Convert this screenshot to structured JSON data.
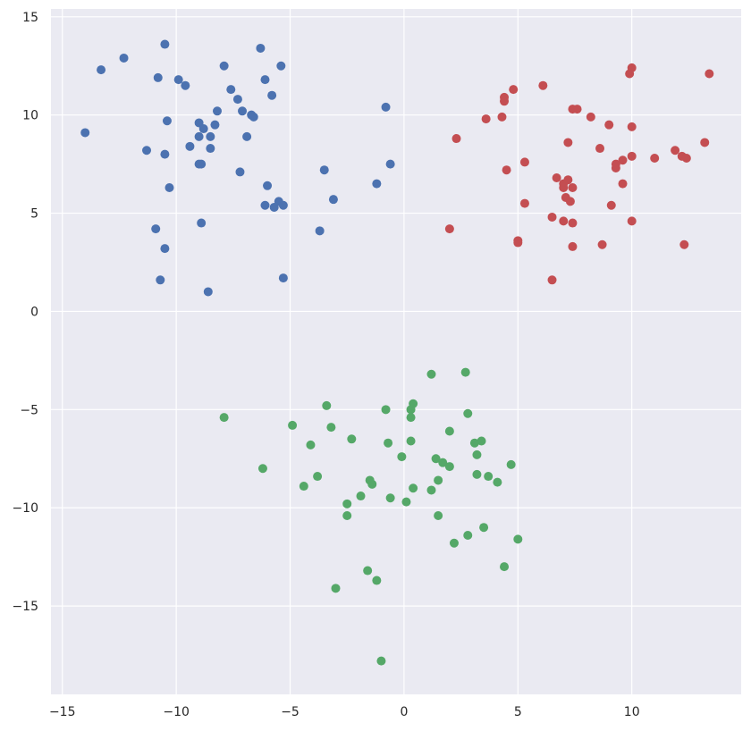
{
  "chart_data": {
    "type": "scatter",
    "title": "",
    "xlabel": "",
    "ylabel": "",
    "xlim": [
      -15.5,
      14.8
    ],
    "ylim": [
      -19.5,
      15.4
    ],
    "xticks": [
      -15,
      -10,
      -5,
      0,
      5,
      10
    ],
    "yticks": [
      -15,
      -10,
      -5,
      0,
      5,
      10,
      15
    ],
    "grid": true,
    "background": "#eaeaf2",
    "gridColor": "#ffffff",
    "series": [
      {
        "color": "#4c72b0",
        "points": [
          [
            -14.0,
            9.1
          ],
          [
            -13.3,
            12.3
          ],
          [
            -12.3,
            12.9
          ],
          [
            -11.3,
            8.2
          ],
          [
            -10.9,
            4.2
          ],
          [
            -10.8,
            11.9
          ],
          [
            -10.7,
            1.6
          ],
          [
            -10.5,
            13.6
          ],
          [
            -10.5,
            8.0
          ],
          [
            -10.5,
            3.2
          ],
          [
            -10.4,
            9.7
          ],
          [
            -10.3,
            6.3
          ],
          [
            -9.9,
            11.8
          ],
          [
            -9.6,
            11.5
          ],
          [
            -9.4,
            8.4
          ],
          [
            -9.0,
            8.9
          ],
          [
            -9.0,
            9.6
          ],
          [
            -9.0,
            7.5
          ],
          [
            -8.9,
            7.5
          ],
          [
            -8.9,
            4.5
          ],
          [
            -8.8,
            9.3
          ],
          [
            -8.6,
            1.0
          ],
          [
            -8.5,
            8.3
          ],
          [
            -8.5,
            8.9
          ],
          [
            -8.3,
            9.5
          ],
          [
            -8.2,
            10.2
          ],
          [
            -7.9,
            12.5
          ],
          [
            -7.6,
            11.3
          ],
          [
            -7.3,
            10.8
          ],
          [
            -7.2,
            7.1
          ],
          [
            -7.1,
            10.2
          ],
          [
            -6.9,
            8.9
          ],
          [
            -6.7,
            10.0
          ],
          [
            -6.6,
            9.9
          ],
          [
            -6.3,
            13.4
          ],
          [
            -6.1,
            11.8
          ],
          [
            -6.1,
            5.4
          ],
          [
            -6.0,
            6.4
          ],
          [
            -5.8,
            11.0
          ],
          [
            -5.7,
            5.3
          ],
          [
            -5.5,
            5.6
          ],
          [
            -5.4,
            12.5
          ],
          [
            -5.3,
            5.4
          ],
          [
            -5.3,
            1.7
          ],
          [
            -3.7,
            4.1
          ],
          [
            -3.5,
            7.2
          ],
          [
            -3.1,
            5.7
          ],
          [
            -1.2,
            6.5
          ],
          [
            -0.8,
            10.4
          ],
          [
            -0.6,
            7.5
          ]
        ]
      },
      {
        "color": "#c44e52",
        "points": [
          [
            2.0,
            4.2
          ],
          [
            2.3,
            8.8
          ],
          [
            3.6,
            9.8
          ],
          [
            4.3,
            9.9
          ],
          [
            4.4,
            10.7
          ],
          [
            4.4,
            10.9
          ],
          [
            4.5,
            7.2
          ],
          [
            4.8,
            11.3
          ],
          [
            5.0,
            3.6
          ],
          [
            5.0,
            3.5
          ],
          [
            5.3,
            7.6
          ],
          [
            5.3,
            5.5
          ],
          [
            6.1,
            11.5
          ],
          [
            6.5,
            1.6
          ],
          [
            6.5,
            4.8
          ],
          [
            6.7,
            6.8
          ],
          [
            7.0,
            6.3
          ],
          [
            7.0,
            6.5
          ],
          [
            7.0,
            4.6
          ],
          [
            7.1,
            5.8
          ],
          [
            7.2,
            6.7
          ],
          [
            7.2,
            8.6
          ],
          [
            7.3,
            5.6
          ],
          [
            7.4,
            10.3
          ],
          [
            7.4,
            6.3
          ],
          [
            7.4,
            4.5
          ],
          [
            7.4,
            3.3
          ],
          [
            7.6,
            10.3
          ],
          [
            8.2,
            9.9
          ],
          [
            8.6,
            8.3
          ],
          [
            8.7,
            3.4
          ],
          [
            9.0,
            9.5
          ],
          [
            9.1,
            5.4
          ],
          [
            9.3,
            7.5
          ],
          [
            9.3,
            7.3
          ],
          [
            9.6,
            7.7
          ],
          [
            9.6,
            6.5
          ],
          [
            9.9,
            12.1
          ],
          [
            10.0,
            12.4
          ],
          [
            10.0,
            9.4
          ],
          [
            10.0,
            7.9
          ],
          [
            10.0,
            4.6
          ],
          [
            11.0,
            7.8
          ],
          [
            11.9,
            8.2
          ],
          [
            12.2,
            7.9
          ],
          [
            12.3,
            3.4
          ],
          [
            12.4,
            7.8
          ],
          [
            13.2,
            8.6
          ],
          [
            13.4,
            12.1
          ]
        ]
      },
      {
        "color": "#55a868",
        "points": [
          [
            -7.9,
            -5.4
          ],
          [
            -6.2,
            -8.0
          ],
          [
            -4.9,
            -5.8
          ],
          [
            -4.4,
            -8.9
          ],
          [
            -4.1,
            -6.8
          ],
          [
            -3.8,
            -8.4
          ],
          [
            -3.4,
            -4.8
          ],
          [
            -3.2,
            -5.9
          ],
          [
            -3.0,
            -14.1
          ],
          [
            -2.5,
            -9.8
          ],
          [
            -2.5,
            -10.4
          ],
          [
            -2.3,
            -6.5
          ],
          [
            -1.9,
            -9.4
          ],
          [
            -1.6,
            -13.2
          ],
          [
            -1.5,
            -8.6
          ],
          [
            -1.4,
            -8.8
          ],
          [
            -1.2,
            -13.7
          ],
          [
            -1.0,
            -17.8
          ],
          [
            -0.8,
            -5.0
          ],
          [
            -0.7,
            -6.7
          ],
          [
            -0.6,
            -9.5
          ],
          [
            -0.1,
            -7.4
          ],
          [
            0.1,
            -9.7
          ],
          [
            0.3,
            -5.0
          ],
          [
            0.3,
            -5.4
          ],
          [
            0.3,
            -6.6
          ],
          [
            0.4,
            -4.7
          ],
          [
            0.4,
            -9.0
          ],
          [
            1.2,
            -3.2
          ],
          [
            1.2,
            -9.1
          ],
          [
            1.4,
            -7.5
          ],
          [
            1.5,
            -10.4
          ],
          [
            1.5,
            -8.6
          ],
          [
            1.7,
            -7.7
          ],
          [
            2.0,
            -6.1
          ],
          [
            2.0,
            -7.9
          ],
          [
            2.2,
            -11.8
          ],
          [
            2.7,
            -3.1
          ],
          [
            2.8,
            -11.4
          ],
          [
            2.8,
            -5.2
          ],
          [
            3.1,
            -6.7
          ],
          [
            3.2,
            -7.3
          ],
          [
            3.2,
            -8.3
          ],
          [
            3.4,
            -6.6
          ],
          [
            3.5,
            -11.0
          ],
          [
            3.7,
            -8.4
          ],
          [
            4.1,
            -8.7
          ],
          [
            4.4,
            -13.0
          ],
          [
            4.7,
            -7.8
          ],
          [
            5.0,
            -11.6
          ]
        ]
      }
    ]
  }
}
